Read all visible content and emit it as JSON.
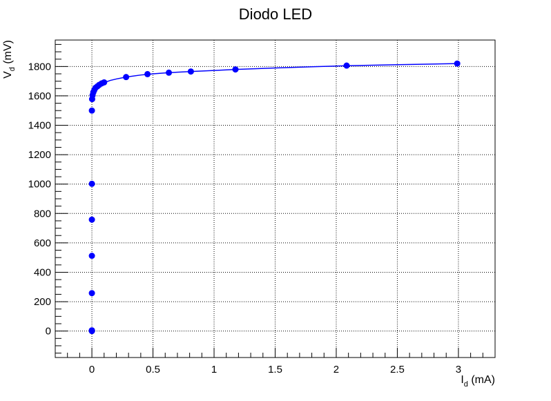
{
  "chart_data": {
    "type": "scatter",
    "title": "Diodo LED",
    "xlabel": {
      "base": "I",
      "sub": "d",
      "unit": " (mA)"
    },
    "ylabel": {
      "base": "V",
      "sub": "d",
      "unit": " (mV)"
    },
    "xlim": [
      -0.3,
      3.3
    ],
    "ylim": [
      -180,
      1980
    ],
    "x_ticks": [
      0,
      0.5,
      1,
      1.5,
      2,
      2.5,
      3
    ],
    "x_tick_labels": [
      "0",
      "0.5",
      "1",
      "1.5",
      "2",
      "2.5",
      "3"
    ],
    "y_ticks": [
      0,
      200,
      400,
      600,
      800,
      1000,
      1200,
      1400,
      1600,
      1800
    ],
    "y_tick_labels": [
      "0",
      "200",
      "400",
      "600",
      "800",
      "1000",
      "1200",
      "1400",
      "1600",
      "1800"
    ],
    "grid": true,
    "series": [
      {
        "marker": "circle",
        "color": "#0000ff",
        "points": [
          [
            0.0,
            0
          ],
          [
            0.0,
            5
          ],
          [
            0.0,
            258
          ],
          [
            0.0,
            512
          ],
          [
            0.0,
            758
          ],
          [
            0.0,
            1002
          ],
          [
            0.0,
            1500
          ],
          [
            0.002,
            1578
          ],
          [
            0.006,
            1605
          ],
          [
            0.012,
            1625
          ],
          [
            0.02,
            1640
          ],
          [
            0.03,
            1655
          ],
          [
            0.045,
            1665
          ],
          [
            0.06,
            1675
          ],
          [
            0.08,
            1685
          ],
          [
            0.1,
            1692
          ],
          [
            0.28,
            1728
          ],
          [
            0.455,
            1748
          ],
          [
            0.63,
            1758
          ],
          [
            0.81,
            1766
          ],
          [
            1.175,
            1780
          ],
          [
            2.085,
            1806
          ],
          [
            2.99,
            1820
          ]
        ]
      }
    ],
    "fit_curve": {
      "color": "#0000ff",
      "x": [
        0.0015,
        0.003,
        0.006,
        0.01,
        0.02,
        0.03,
        0.045,
        0.06,
        0.08,
        0.1,
        0.15,
        0.2,
        0.28,
        0.4,
        0.5,
        0.63,
        0.81,
        1.0,
        1.175,
        1.5,
        1.8,
        2.085,
        2.5,
        2.99
      ],
      "y": [
        1575,
        1590,
        1608,
        1620,
        1638,
        1650,
        1663,
        1673,
        1683,
        1690,
        1705,
        1715,
        1728,
        1742,
        1750,
        1758,
        1766,
        1773,
        1780,
        1790,
        1798,
        1805,
        1812,
        1820
      ]
    }
  }
}
